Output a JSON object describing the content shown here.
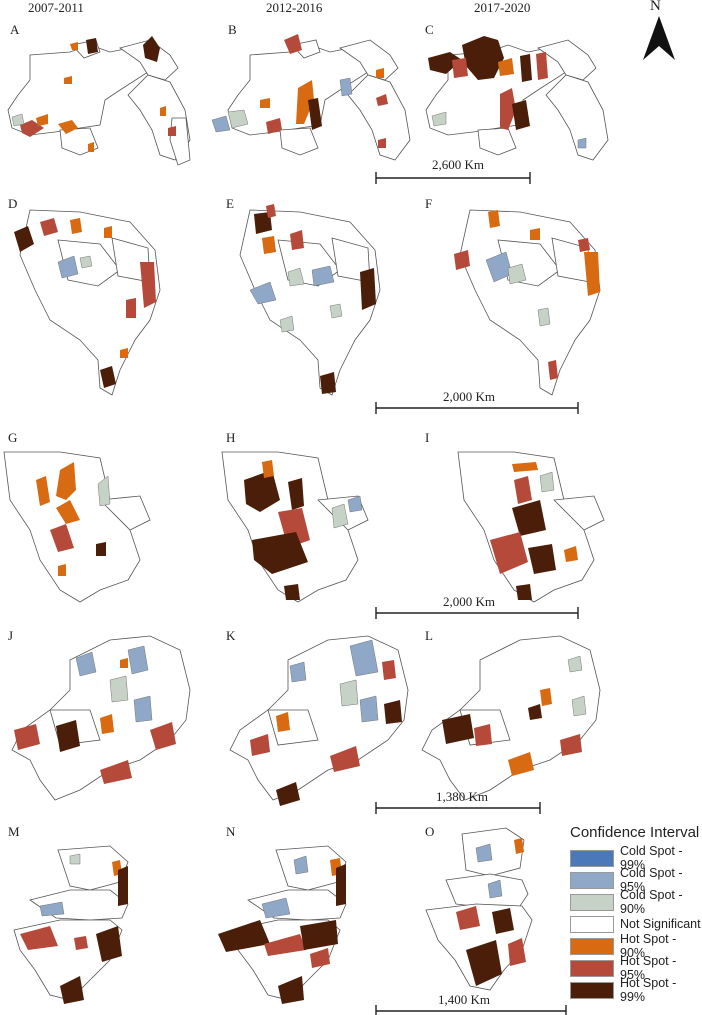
{
  "columns": [
    "2007-2011",
    "2012-2016",
    "2017-2020"
  ],
  "panel_labels": [
    "A",
    "B",
    "C",
    "D",
    "E",
    "F",
    "G",
    "H",
    "I",
    "J",
    "K",
    "L",
    "M",
    "N",
    "O"
  ],
  "scale_bars": [
    "2,600 Km",
    "2,000 Km",
    "2,000 Km",
    "1,380 Km",
    "1,400 Km"
  ],
  "north_label": "N",
  "legend": {
    "title": "Confidence Interval",
    "items": [
      {
        "label": "Cold Spot - 99%",
        "color": "#4a78b8"
      },
      {
        "label": "Cold Spot - 95%",
        "color": "#8fa8c8"
      },
      {
        "label": "Cold Spot - 90%",
        "color": "#c6d2c6"
      },
      {
        "label": "Not Significant",
        "color": "#ffffff"
      },
      {
        "label": "Hot Spot - 90%",
        "color": "#d86a12"
      },
      {
        "label": "Hot Spot - 95%",
        "color": "#b54a3a"
      },
      {
        "label": "Hot Spot - 99%",
        "color": "#4a1e08"
      }
    ]
  }
}
